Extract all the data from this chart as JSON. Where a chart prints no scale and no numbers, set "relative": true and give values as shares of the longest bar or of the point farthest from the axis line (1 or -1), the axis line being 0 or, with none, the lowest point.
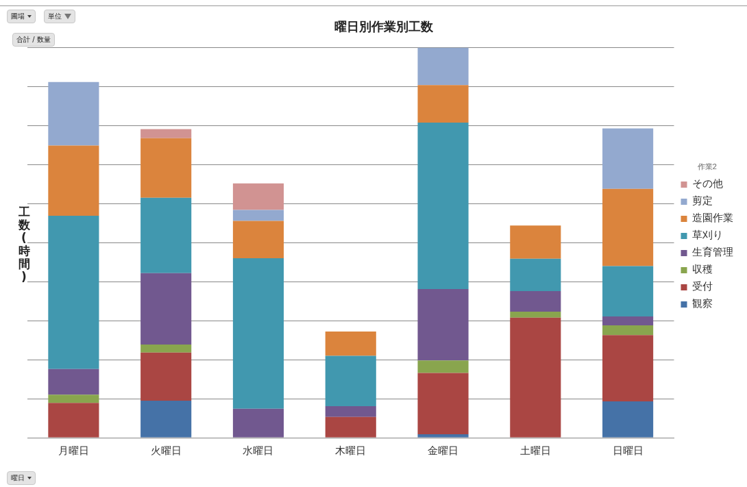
{
  "chart_data": {
    "type": "bar",
    "title": "曜日別作業別工数",
    "ylabel": "工数(時間)",
    "legend_title": "作業2",
    "categories": [
      "月曜日",
      "火曜日",
      "水曜日",
      "木曜日",
      "金曜日",
      "土曜日",
      "日曜日"
    ],
    "stacked": true,
    "relative": true,
    "grid": "y",
    "legend": "right",
    "annotations": [
      "圃場",
      "単位",
      "合計 / 数量",
      "曜日"
    ],
    "series": [
      {
        "name": "観察",
        "color": "#4572a7",
        "values": [
          0,
          0.095,
          0,
          0,
          0.009,
          0,
          0.093
        ]
      },
      {
        "name": "受付",
        "color": "#aa4643",
        "values": [
          0.089,
          0.123,
          0,
          0.053,
          0.157,
          0.308,
          0.17
        ]
      },
      {
        "name": "収穫",
        "color": "#89a54e",
        "values": [
          0.021,
          0.021,
          0,
          0,
          0.032,
          0.015,
          0.025
        ]
      },
      {
        "name": "生育管理",
        "color": "#71588f",
        "values": [
          0.066,
          0.183,
          0.074,
          0.028,
          0.183,
          0.053,
          0.023
        ]
      },
      {
        "name": "草刈り",
        "color": "#4198af",
        "values": [
          0.393,
          0.193,
          0.386,
          0.129,
          0.427,
          0.083,
          0.129
        ]
      },
      {
        "name": "造園作業",
        "color": "#db843d",
        "values": [
          0.18,
          0.153,
          0.096,
          0.062,
          0.096,
          0.085,
          0.198
        ]
      },
      {
        "name": "剪定",
        "color": "#93a9cf",
        "values": [
          0.163,
          0,
          0.028,
          0,
          0.096,
          0,
          0.155
        ]
      },
      {
        "name": "その他",
        "color": "#d19392",
        "values": [
          0,
          0.023,
          0.068,
          0,
          0,
          0,
          0
        ]
      }
    ]
  }
}
